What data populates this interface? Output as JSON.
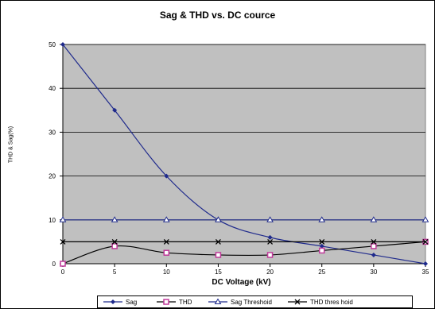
{
  "chart_data": {
    "type": "line",
    "title": "Sag & THD vs. DC cource",
    "xlabel": "DC Voltage (kV)",
    "ylabel": "THD & Sag(%)",
    "x": [
      0,
      5,
      10,
      15,
      20,
      25,
      30,
      35
    ],
    "xlim": [
      0,
      35
    ],
    "ylim": [
      0,
      50
    ],
    "x_ticks": [
      "0",
      "5",
      "10",
      "15",
      "20",
      "25",
      "30",
      "35"
    ],
    "y_ticks": [
      "0",
      "10",
      "20",
      "30",
      "40",
      "50"
    ],
    "grid": "horizontal",
    "legend_position": "bottom",
    "plot_background": "#c0c0c0",
    "series": [
      {
        "name": "Sag",
        "values": [
          50,
          35,
          20,
          10,
          6,
          4,
          2,
          0
        ],
        "color": "#1f2a8c",
        "marker": "diamond"
      },
      {
        "name": "THD",
        "values": [
          0,
          4,
          2.5,
          2,
          2,
          3,
          4,
          5
        ],
        "color": "#000000",
        "marker": "square",
        "marker_color": "#c0399a"
      },
      {
        "name": "Sag Threshoid",
        "values": [
          10,
          10,
          10,
          10,
          10,
          10,
          10,
          10
        ],
        "color": "#1f2a8c",
        "marker": "triangle"
      },
      {
        "name": "THD thres hoid",
        "values": [
          5,
          5,
          5,
          5,
          5,
          5,
          5,
          5
        ],
        "color": "#000000",
        "marker": "x"
      }
    ]
  }
}
